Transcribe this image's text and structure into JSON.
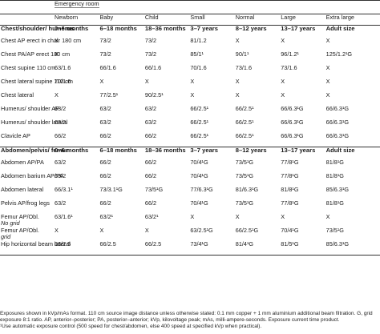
{
  "header": {
    "group_label": "Emergency room",
    "categories": [
      "Newborn",
      "Baby",
      "Child",
      "Small",
      "Normal",
      "Large",
      "Extra large"
    ]
  },
  "sections": [
    {
      "title": "Chest/shoulder/ humerus",
      "ranges": [
        "0–6 months",
        "6–18 months",
        "18–36 months",
        "3–7 years",
        "8–12 years",
        "13–17 years",
        "Adult size"
      ],
      "rows": [
        {
          "label": "Chest AP erect in chair 180 cm",
          "values": [
            "X",
            "73/2",
            "73/2",
            "81/1.2",
            "X",
            "X",
            "X"
          ]
        },
        {
          "label": "Chest PA/AP erect 180 cm",
          "values": [
            "X",
            "73/2",
            "73/2",
            "85/1¹",
            "90/1¹",
            "96/1.2¹",
            "125/1.2¹G"
          ]
        },
        {
          "label": "Chest supine 110 cm",
          "values": [
            "63/1.6",
            "66/1.6",
            "66/1.6",
            "70/1.6",
            "73/1.6",
            "73/1.6",
            "X"
          ]
        },
        {
          "label": "Chest lateral supine 110 cm",
          "values": [
            "70/1.6",
            "X",
            "X",
            "X",
            "X",
            "X",
            "X"
          ]
        },
        {
          "label": "Chest lateral",
          "values": [
            "X",
            "77/2.5¹",
            "90/2.5¹",
            "X",
            "X",
            "X",
            "X"
          ]
        },
        {
          "label": "Humerus/ shoulder AP",
          "values": [
            "63/2",
            "63/2",
            "63/2",
            "66/2.5¹",
            "66/2.5¹",
            "66/6.3¹G",
            "66/6.3¹G"
          ]
        },
        {
          "label": "Humerus/ shoulder lateral",
          "values": [
            "63/2",
            "63/2",
            "63/2",
            "66/2.5¹",
            "66/2.5¹",
            "66/6.3¹G",
            "66/6.3¹G"
          ]
        },
        {
          "label": "Clavicle AP",
          "values": [
            "66/2",
            "66/2",
            "66/2",
            "66/2.5¹",
            "66/2.5¹",
            "66/6.3¹G",
            "66/6.3¹G"
          ]
        }
      ]
    },
    {
      "title": "Abdomen/pelvis/ femur",
      "ranges": [
        "0–6 months",
        "6–18 months",
        "18–36 months",
        "3–7 years",
        "8–12 years",
        "13–17 years",
        "Adult size"
      ],
      "rows": [
        {
          "label": "Abdomen AP/PA",
          "sub": "",
          "values": [
            "63/2",
            "66/2",
            "66/2",
            "70/4¹G",
            "73/5¹G",
            "77/8¹G",
            "81/8¹G"
          ]
        },
        {
          "label": "Abdomen barium AP/PA",
          "sub": "",
          "values": [
            "63/2",
            "66/2",
            "66/2",
            "70/4¹G",
            "73/5¹G",
            "77/8¹G",
            "81/8¹G"
          ]
        },
        {
          "label": "Abdomen lateral",
          "sub": "",
          "values": [
            "66/3.1¹",
            "73/3.1¹G",
            "73/5¹G",
            "77/6.3¹G",
            "81/6.3¹G",
            "81/8¹G",
            "85/6.3¹G"
          ]
        },
        {
          "label": "Pelvis AP/frog legs",
          "sub": "",
          "values": [
            "63/2",
            "66/2",
            "66/2",
            "70/4¹G",
            "73/5¹G",
            "77/8¹G",
            "81/8¹G"
          ]
        },
        {
          "label": "Femur AP/Obl.",
          "sub": "No grid",
          "values": [
            "63/1.6¹",
            "63/2¹",
            "63/2¹",
            "X",
            "X",
            "X",
            "X"
          ]
        },
        {
          "label": "Femur AP/Obl.",
          "sub": "grid",
          "values": [
            "X",
            "X",
            "X",
            "63/2.5¹G",
            "66/2.5¹G",
            "70/4¹G",
            "73/5¹G"
          ]
        },
        {
          "label": "Hip horizontal beam lateral",
          "sub": "",
          "values": [
            "66/2.5",
            "66/2.5",
            "66/2.5",
            "73/4¹G",
            "81/4¹G",
            "81/5¹G",
            "85/6.3¹G"
          ]
        }
      ]
    }
  ],
  "footnote": {
    "text": "Exposures shown in kVp/mAs format. 110 cm source image distance unless otherwise stated: 0.1 mm copper + 1 mm aluminium additional beam filtration. G, grid exposure 8:1 ratio. AP, anterior–posterior; PA, posterior–anterior; kVp, kilovoltage peak; mAs, milli-ampere-seconds. Exposure current time product.",
    "note": "¹Use automatic exposure control (500 speed for chest/abdomen, else 400 speed at specified kVp when practical)."
  }
}
